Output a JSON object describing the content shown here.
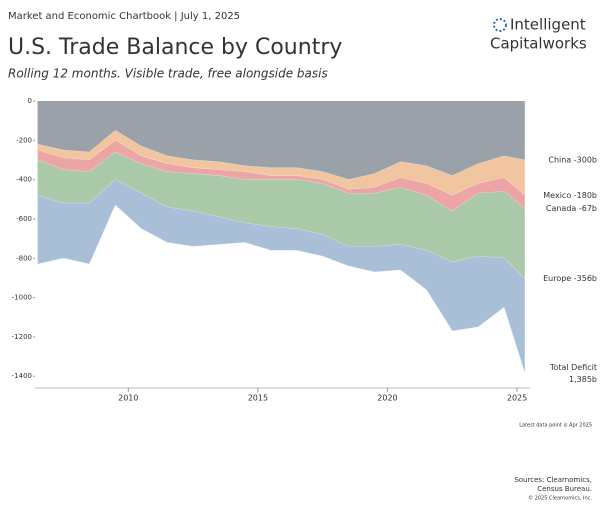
{
  "header": "Market and Economic Chartbook | July 1, 2025",
  "logo": {
    "line1": "Intelligent",
    "line2": "Capitalworks"
  },
  "chart_data": {
    "type": "stacked_area",
    "title": "U.S. Trade Balance by Country",
    "subtitle": "Rolling 12 months. Visible trade, free alongside basis",
    "x": [
      2006.5,
      2007.5,
      2008.5,
      2009.5,
      2010.5,
      2011.5,
      2012.5,
      2013.5,
      2014.5,
      2015.5,
      2016.5,
      2017.5,
      2018.5,
      2019.5,
      2020.5,
      2021.5,
      2022.5,
      2023.5,
      2024.5,
      2025.3
    ],
    "series": [
      {
        "name": "China -300b",
        "color": "#9ba1a9",
        "values": [
          -220,
          -250,
          -260,
          -150,
          -230,
          -280,
          -300,
          -310,
          -330,
          -340,
          -340,
          -360,
          -400,
          -370,
          -310,
          -330,
          -380,
          -320,
          -280,
          -300
        ]
      },
      {
        "name": "Mexico -180b",
        "color": "#f1c5a0",
        "values": [
          -30,
          -40,
          -40,
          -50,
          -50,
          -40,
          -40,
          -40,
          -30,
          -40,
          -40,
          -40,
          -50,
          -70,
          -80,
          -90,
          -100,
          -100,
          -110,
          -180
        ]
      },
      {
        "name": "Canada -67b",
        "color": "#eba5a5",
        "values": [
          -50,
          -60,
          -60,
          -60,
          -40,
          -40,
          -30,
          -30,
          -40,
          -20,
          -20,
          -20,
          -20,
          -30,
          -50,
          -60,
          -80,
          -50,
          -70,
          -67
        ]
      },
      {
        "name": "Europe -356b",
        "color": "#a9c9a9",
        "values": [
          -180,
          -170,
          -160,
          -140,
          -150,
          -180,
          -190,
          -210,
          -220,
          -240,
          -250,
          -260,
          -270,
          -270,
          -290,
          -280,
          -260,
          -320,
          -340,
          -356
        ]
      },
      {
        "color": "#a9bfd7",
        "values": [
          -350,
          -280,
          -310,
          -130,
          -180,
          -180,
          -180,
          -140,
          -100,
          -120,
          -110,
          -110,
          -100,
          -130,
          -130,
          -200,
          -350,
          -360,
          -250,
          -482
        ]
      }
    ],
    "total_label": [
      "Total Deficit",
      "1,385b"
    ],
    "xlim": [
      2006.4,
      2025.5
    ],
    "ylim": [
      -1460,
      0
    ],
    "xticks": [
      2010,
      2015,
      2020,
      2025
    ],
    "yticks": [
      0,
      -200,
      -400,
      -600,
      -800,
      -1000,
      -1200,
      -1400
    ],
    "note": "Latest data point is Apr 2025"
  },
  "footer": {
    "sources": "Sources: Clearnomics,",
    "sources2": "Census Bureau.",
    "copyright": "© 2025 Clearnomics, Inc."
  }
}
